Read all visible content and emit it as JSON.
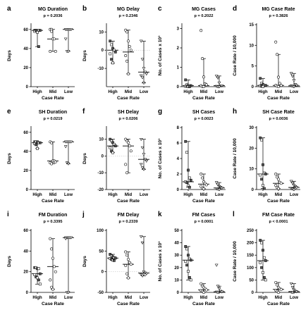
{
  "figure": {
    "x_axis_label": "Case Rate",
    "categories": [
      "High",
      "Mid",
      "Low"
    ]
  },
  "chart_data": [
    {
      "letter": "a",
      "title": "MG Duration",
      "pvalue": "p = 0.2036",
      "ylabel": "Days",
      "type": "scatter",
      "yticks": [
        0,
        20,
        40,
        60
      ],
      "ylim": [
        0,
        65
      ],
      "categories": [
        "High",
        "Mid",
        "Low"
      ],
      "series": [
        {
          "name": "High",
          "median": 59,
          "range": [
            42,
            59
          ],
          "values": [
            59,
            59,
            58,
            59,
            59,
            58,
            59,
            57,
            42
          ]
        },
        {
          "name": "Mid",
          "median": 50,
          "range": [
            37,
            60
          ],
          "values": [
            60,
            60,
            50,
            50,
            37,
            37,
            58
          ]
        },
        {
          "name": "Low",
          "median": 60,
          "range": [
            37,
            60
          ],
          "values": [
            60,
            60,
            60,
            60,
            60,
            50,
            37,
            37
          ]
        }
      ]
    },
    {
      "letter": "b",
      "title": "MG Delay",
      "pvalue": "p = 0.2346",
      "ylabel": "Days",
      "type": "scatter",
      "yticks": [
        -10,
        0,
        10
      ],
      "ylim": [
        -20,
        14
      ],
      "categories": [
        "High",
        "Mid",
        "Low"
      ],
      "series": [
        {
          "name": "High",
          "median": 0,
          "range": [
            -7,
            5
          ],
          "values": [
            5,
            3,
            1,
            0,
            -1,
            -2,
            -5,
            -7
          ]
        },
        {
          "name": "Mid",
          "median": -1,
          "range": [
            -13,
            11
          ],
          "values": [
            11,
            10,
            5,
            2,
            0,
            -3,
            -6,
            -13
          ]
        },
        {
          "name": "Low",
          "median": -12,
          "range": [
            -18,
            5
          ],
          "values": [
            5,
            -5,
            -10,
            -12,
            -13,
            -14,
            -15,
            -18
          ]
        }
      ]
    },
    {
      "letter": "c",
      "title": "MG Cases",
      "pvalue": "p = 0.2022",
      "ylabel": "No. of Cases x 10³",
      "type": "scatter",
      "yticks": [
        0,
        1,
        2,
        3
      ],
      "ylim": [
        0,
        3.2
      ],
      "categories": [
        "High",
        "Mid",
        "Low"
      ],
      "series": [
        {
          "name": "High",
          "median": 0.05,
          "range": [
            0,
            0.35
          ],
          "values": [
            0.35,
            0.1,
            0.05,
            0.05,
            0.05,
            0.02,
            0.02,
            0,
            0
          ]
        },
        {
          "name": "Mid",
          "median": 0.05,
          "range": [
            0,
            1.45
          ],
          "values": [
            2.9,
            1.45,
            0.5,
            0.15,
            0.1,
            0.05,
            0,
            0
          ]
        },
        {
          "name": "Low",
          "median": 0.05,
          "range": [
            0,
            0.55
          ],
          "values": [
            0.55,
            0.45,
            0.2,
            0.05,
            0.05,
            0.02,
            0,
            0
          ]
        }
      ]
    },
    {
      "letter": "d",
      "title": "MG Case Rate",
      "pvalue": "p = 0.3826",
      "ylabel": "Case Rate / 10,000",
      "type": "scatter",
      "yticks": [
        0,
        5,
        10,
        15
      ],
      "ylim": [
        0,
        15
      ],
      "categories": [
        "High",
        "Mid",
        "Low"
      ],
      "series": [
        {
          "name": "High",
          "median": 0.3,
          "range": [
            0,
            2
          ],
          "values": [
            2,
            0.8,
            0.5,
            0.3,
            0.3,
            0.2,
            0.1,
            0
          ]
        },
        {
          "name": "Mid",
          "median": 0.3,
          "range": [
            0,
            7.8
          ],
          "values": [
            10.8,
            7.8,
            2.3,
            0.8,
            0.3,
            0.3,
            0.1,
            0
          ]
        },
        {
          "name": "Low",
          "median": 0.2,
          "range": [
            0,
            3.2
          ],
          "values": [
            3.2,
            2.5,
            1.5,
            0.5,
            0.3,
            0.2,
            0.1,
            0
          ]
        }
      ]
    },
    {
      "letter": "e",
      "title": "SH Duration",
      "pvalue": "p = 0.0219",
      "ylabel": "Days",
      "type": "scatter",
      "yticks": [
        0,
        20,
        40,
        60
      ],
      "ylim": [
        0,
        65
      ],
      "categories": [
        "High",
        "Mid",
        "Low"
      ],
      "series": [
        {
          "name": "High",
          "median": 49,
          "range": [
            43,
            50
          ],
          "values": [
            50,
            50,
            50,
            49,
            49,
            48,
            47,
            43
          ]
        },
        {
          "name": "Mid",
          "median": 30,
          "range": [
            27,
            50
          ],
          "values": [
            50,
            49,
            30,
            30,
            29,
            28,
            27
          ]
        },
        {
          "name": "Low",
          "median": 50,
          "range": [
            27,
            50
          ],
          "values": [
            50,
            50,
            50,
            50,
            50,
            45,
            28,
            27
          ]
        }
      ]
    },
    {
      "letter": "f",
      "title": "SH Delay",
      "pvalue": "p = 0.0206",
      "ylabel": "Days",
      "type": "scatter",
      "yticks": [
        -20,
        -10,
        0,
        10
      ],
      "ylim": [
        -20,
        17
      ],
      "categories": [
        "High",
        "Mid",
        "Low"
      ],
      "series": [
        {
          "name": "High",
          "median": 6,
          "range": [
            2,
            10
          ],
          "values": [
            10,
            9,
            8,
            7,
            6,
            5,
            3,
            2
          ]
        },
        {
          "name": "Mid",
          "median": 6,
          "range": [
            -10,
            10
          ],
          "values": [
            10,
            9,
            8,
            6,
            3,
            -5,
            -10
          ]
        },
        {
          "name": "Low",
          "median": -2,
          "range": [
            -8,
            10
          ],
          "values": [
            10,
            5,
            1,
            -2,
            -3,
            -5,
            -7,
            -8
          ]
        }
      ]
    },
    {
      "letter": "g",
      "title": "SH Cases",
      "pvalue": "p = 0.0023",
      "ylabel": "No. of Cases x 10³",
      "type": "scatter",
      "yticks": [
        0,
        2,
        4,
        6,
        8
      ],
      "ylim": [
        0,
        8
      ],
      "categories": [
        "High",
        "Mid",
        "Low"
      ],
      "series": [
        {
          "name": "High",
          "median": 1,
          "range": [
            0.3,
            6.2
          ],
          "values": [
            6.2,
            4.8,
            2.5,
            1.5,
            1.2,
            1,
            0.9,
            0.5,
            0.3
          ]
        },
        {
          "name": "Mid",
          "median": 0.7,
          "range": [
            0.1,
            2
          ],
          "values": [
            2,
            1.5,
            1,
            0.8,
            0.6,
            0.4,
            0.2,
            0.1
          ]
        },
        {
          "name": "Low",
          "median": 0.2,
          "range": [
            0,
            0.9
          ],
          "values": [
            0.9,
            0.6,
            0.4,
            0.3,
            0.2,
            0.1,
            0.05,
            0
          ]
        }
      ]
    },
    {
      "letter": "h",
      "title": "SH Case Rate",
      "pvalue": "p = 0.0036",
      "ylabel": "Case Rate / 10,000",
      "type": "scatter",
      "yticks": [
        0,
        10,
        20,
        30
      ],
      "ylim": [
        0,
        30
      ],
      "categories": [
        "High",
        "Mid",
        "Low"
      ],
      "series": [
        {
          "name": "High",
          "median": 7.5,
          "range": [
            0.5,
            25
          ],
          "values": [
            25,
            24,
            12,
            8,
            7.5,
            7,
            5,
            2,
            0.5
          ]
        },
        {
          "name": "Mid",
          "median": 3,
          "range": [
            0.5,
            7.5
          ],
          "values": [
            7.5,
            6,
            5,
            3.5,
            3,
            2,
            1,
            0.5
          ]
        },
        {
          "name": "Low",
          "median": 1,
          "range": [
            0,
            4
          ],
          "values": [
            4,
            3,
            2,
            1.5,
            1,
            0.5,
            0.3,
            0
          ]
        }
      ]
    },
    {
      "letter": "i",
      "title": "FM Duration",
      "pvalue": "p = 0.3395",
      "ylabel": "Days",
      "type": "scatter",
      "yticks": [
        0,
        20,
        40,
        60
      ],
      "ylim": [
        0,
        60
      ],
      "categories": [
        "High",
        "Mid",
        "Low"
      ],
      "series": [
        {
          "name": "High",
          "median": 18,
          "range": [
            8,
            24
          ],
          "values": [
            24,
            24,
            23,
            23,
            18,
            17,
            15,
            14,
            12,
            8
          ]
        },
        {
          "name": "Mid",
          "median": 25,
          "range": [
            3,
            52
          ],
          "values": [
            52,
            42,
            33,
            25,
            20,
            12,
            5,
            3
          ]
        },
        {
          "name": "Low",
          "median": 53,
          "range": [
            0,
            53
          ],
          "values": [
            53,
            53,
            53,
            53,
            53,
            52,
            0,
            0
          ]
        }
      ]
    },
    {
      "letter": "j",
      "title": "FM Delay",
      "pvalue": "p = 0.2339",
      "ylabel": "Days",
      "type": "scatter",
      "yticks": [
        -50,
        0,
        50,
        100
      ],
      "ylim": [
        -50,
        100
      ],
      "categories": [
        "High",
        "Mid",
        "Low"
      ],
      "series": [
        {
          "name": "High",
          "median": 33,
          "range": [
            27,
            42
          ],
          "values": [
            42,
            38,
            36,
            34,
            33,
            32,
            30,
            28,
            27
          ]
        },
        {
          "name": "Mid",
          "median": 18,
          "range": [
            -15,
            48
          ],
          "values": [
            48,
            40,
            30,
            22,
            18,
            15,
            -5,
            -15
          ]
        },
        {
          "name": "Low",
          "median": -3,
          "range": [
            -10,
            85
          ],
          "values": [
            85,
            70,
            0,
            -3,
            -5,
            -7,
            -10
          ]
        }
      ]
    },
    {
      "letter": "k",
      "title": "FM Cases",
      "pvalue": "p = 0.0001",
      "ylabel": "No. of Cases x 10³",
      "type": "scatter",
      "yticks": [
        0,
        10,
        20,
        30,
        40,
        50
      ],
      "ylim": [
        0,
        50
      ],
      "categories": [
        "High",
        "Mid",
        "Low"
      ],
      "series": [
        {
          "name": "High",
          "median": 26,
          "range": [
            10,
            37
          ],
          "values": [
            37,
            35,
            30,
            27,
            26,
            25,
            22,
            17,
            12,
            10
          ]
        },
        {
          "name": "Mid",
          "median": 2,
          "range": [
            0,
            7
          ],
          "values": [
            7,
            5,
            4,
            3,
            2,
            1.5,
            1,
            0
          ]
        },
        {
          "name": "Low",
          "median": 0.5,
          "range": [
            0,
            5
          ],
          "values": [
            22,
            5,
            3,
            1,
            0.5,
            0.3,
            0
          ]
        }
      ]
    },
    {
      "letter": "l",
      "title": "FM Case Rate",
      "pvalue": "p < 0.0001",
      "ylabel": "Case Rate / 10,000",
      "type": "scatter",
      "yticks": [
        0,
        50,
        100,
        150,
        200,
        250
      ],
      "ylim": [
        0,
        250
      ],
      "categories": [
        "High",
        "Mid",
        "Low"
      ],
      "series": [
        {
          "name": "High",
          "median": 128,
          "range": [
            50,
            210
          ],
          "values": [
            210,
            200,
            170,
            140,
            128,
            120,
            100,
            80,
            60,
            50
          ]
        },
        {
          "name": "Mid",
          "median": 12,
          "range": [
            0,
            40
          ],
          "values": [
            40,
            30,
            20,
            15,
            12,
            8,
            5,
            0
          ]
        },
        {
          "name": "Low",
          "median": 3,
          "range": [
            0,
            35
          ],
          "values": [
            35,
            20,
            10,
            5,
            3,
            1,
            0
          ]
        }
      ]
    }
  ]
}
